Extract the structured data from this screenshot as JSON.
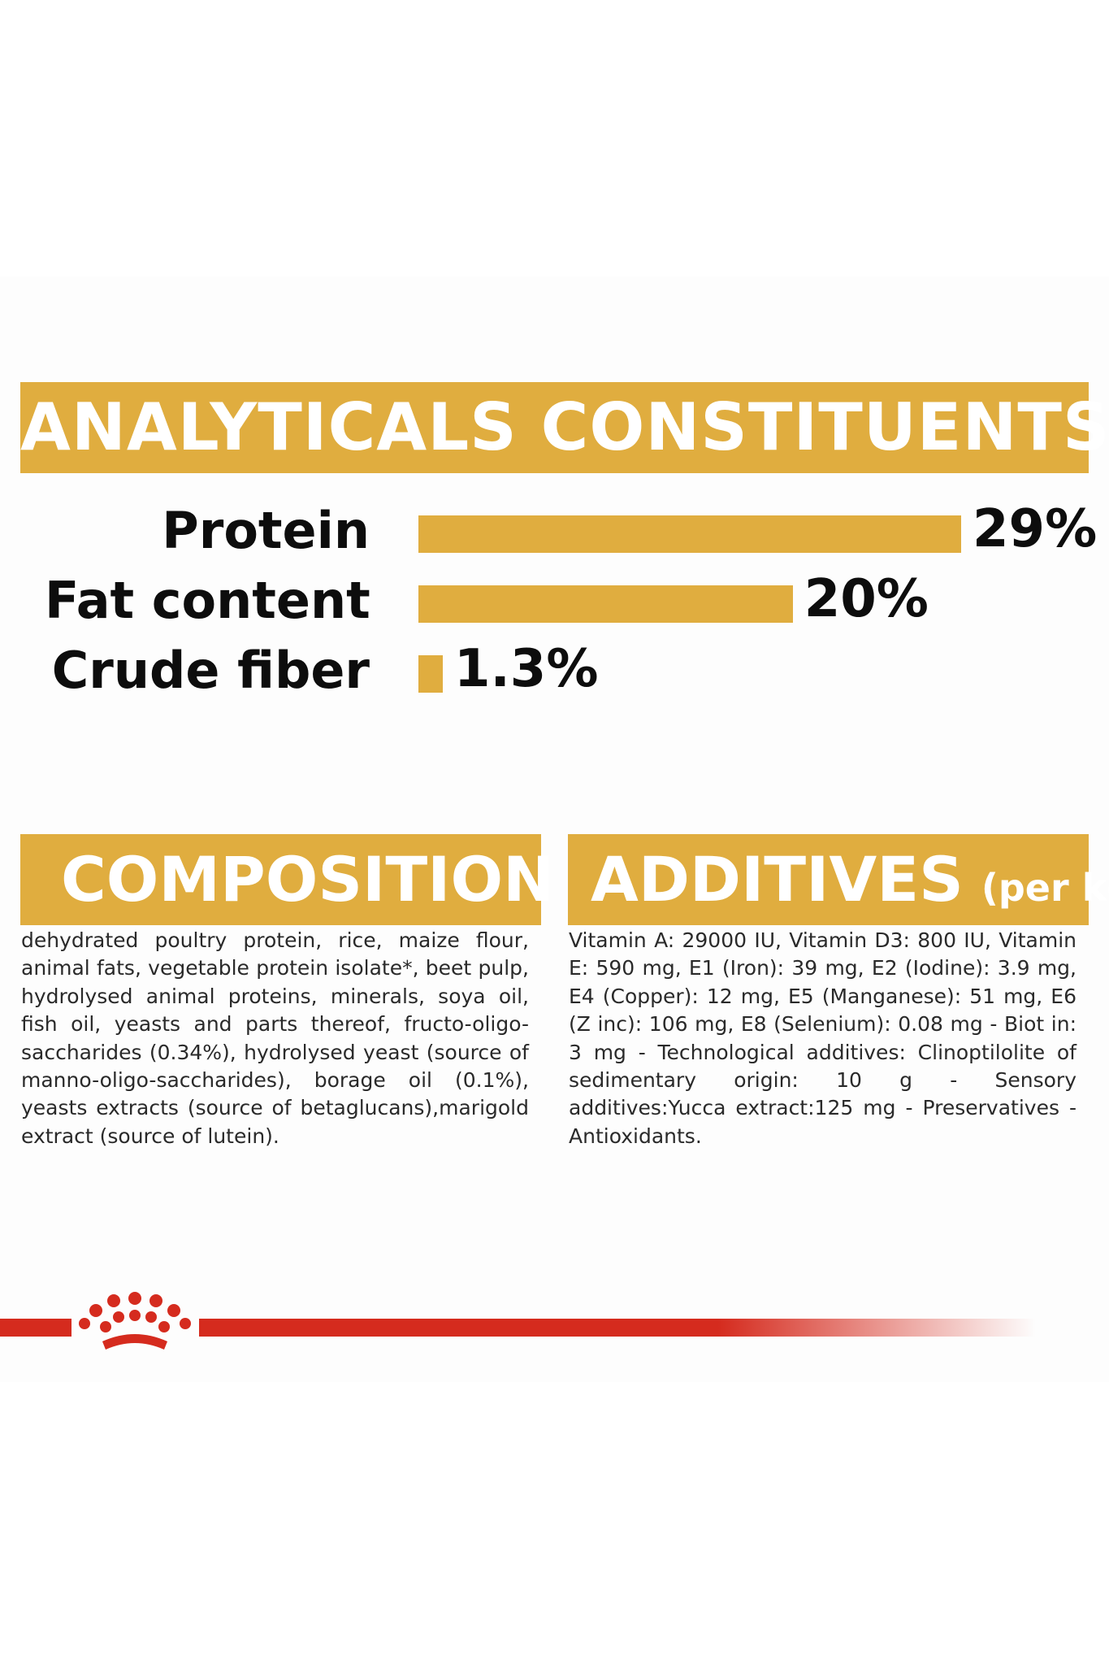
{
  "colors": {
    "accent": "#e0ad3f",
    "brand_red": "#d52b1e",
    "text": "#0d0d0d"
  },
  "analytical": {
    "title": "ANALYTICALS CONSTITUENTS"
  },
  "chart_data": {
    "type": "bar",
    "orientation": "horizontal",
    "categories": [
      "Protein",
      "Fat content",
      "Crude fiber"
    ],
    "values": [
      29,
      20,
      1.3
    ],
    "value_labels": [
      "29%",
      "20%",
      "1.3%"
    ],
    "unit": "%"
  },
  "composition": {
    "title": "COMPOSITION",
    "text": "dehydrated poultry protein, rice, maize flour, animal fats, vegetable protein isolate*, beet pulp, hydrolysed animal proteins, minerals, soya oil, fish oil, yeasts and parts thereof, fructo-oligo-saccharides (0.34%), hydrolysed yeast (source of manno-oligo-saccharides), borage oil (0.1%), yeasts extracts (source of betaglucans),marigold extract (source of lutein)."
  },
  "additives": {
    "title": "ADDITIVES",
    "subtitle": "(per kg)",
    "text": "Vitamin A: 29000 IU, Vitamin D3: 800 IU, Vitamin E: 590 mg, E1 (Iron): 39 mg, E2 (Iodine): 3.9 mg, E4 (Copper): 12 mg, E5 (Manganese): 51 mg, E6 (Z inc): 106 mg, E8 (Selenium): 0.08 mg - Biot in: 3 mg - Technological additives: Clinoptilolite of sedimentary origin: 10 g - Sensory additives:Yucca extract:125 mg - Preservatives - Antioxidants."
  },
  "brand": {
    "logo_icon": "crown-icon"
  }
}
